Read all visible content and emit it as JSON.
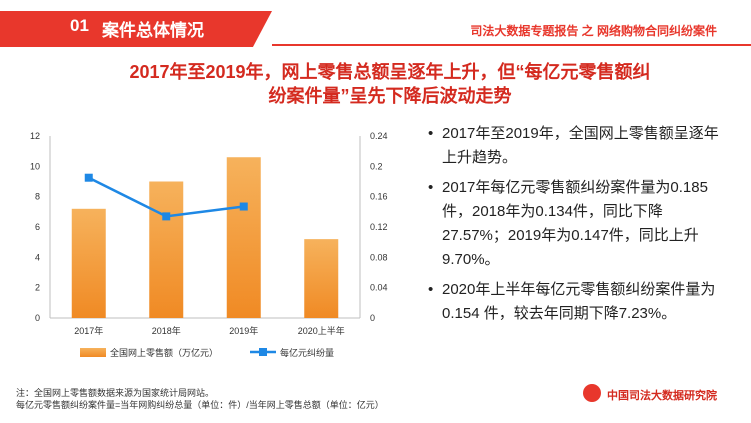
{
  "header": {
    "section_number": "01",
    "section_title": "案件总体情况",
    "report_title": "司法大数据专题报告 之 网络购物合同纠纷案件"
  },
  "headline": {
    "line1": "2017年至2019年，网上零售总额呈逐年上升，但“每亿元零售额纠",
    "line2": "纷案件量”呈先下降后波动走势"
  },
  "colors": {
    "accent": "#e8372c",
    "bar": "#f4a24a",
    "line": "#1e88e5"
  },
  "chart_data": {
    "type": "bar+line",
    "categories": [
      "2017年",
      "2018年",
      "2019年",
      "2020上半年"
    ],
    "series": [
      {
        "name": "全国网上零售额（万亿元）",
        "type": "bar",
        "axis": "left",
        "values": [
          7.2,
          9.0,
          10.6,
          5.2
        ]
      },
      {
        "name": "每亿元纠纷量",
        "type": "line",
        "axis": "right",
        "values": [
          0.185,
          0.134,
          0.147,
          null
        ]
      }
    ],
    "y_left": {
      "min": 0,
      "max": 12,
      "ticks": [
        "0",
        "2",
        "4",
        "6",
        "8",
        "10",
        "12"
      ]
    },
    "y_right": {
      "min": 0,
      "max": 0.24,
      "ticks": [
        "0",
        "0.04",
        "0.08",
        "0.12",
        "0.16",
        "0.2",
        "0.24"
      ]
    },
    "grid": false,
    "legend_position": "bottom"
  },
  "bullets": [
    {
      "marker": "•",
      "text": "2017年至2019年，全国网上零售额呈逐年上升趋势。"
    },
    {
      "marker": "•",
      "text": "2017年每亿元零售额纠纷案件量为0.185件，2018年为0.134件，同比下降27.57%；2019年为0.147件，同比上升9.70%。"
    },
    {
      "marker": "•",
      "text": "2020年上半年每亿元零售额纠纷案件量为 0.154 件，较去年同期下降7.23%。"
    }
  ],
  "footnote": {
    "line1": "注：全国网上零售额数据来源为国家统计局网站。",
    "line2": "每亿元零售额纠纷案件量=当年网购纠纷总量（单位：件）/当年网上零售总额（单位：亿元）"
  },
  "logo": {
    "text": "中国司法大数据研究院"
  }
}
